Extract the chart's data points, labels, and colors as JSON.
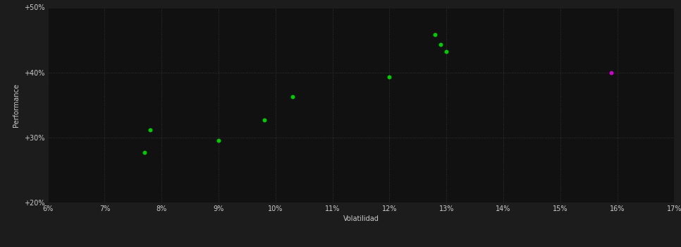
{
  "background_color": "#1c1c1c",
  "plot_bg_color": "#111111",
  "grid_color": "#3a3a3a",
  "xlabel": "Volatilidad",
  "ylabel": "Performance",
  "xlim": [
    0.06,
    0.17
  ],
  "ylim": [
    0.2,
    0.5
  ],
  "xticks": [
    0.06,
    0.07,
    0.08,
    0.09,
    0.1,
    0.11,
    0.12,
    0.13,
    0.14,
    0.15,
    0.16,
    0.17
  ],
  "yticks": [
    0.2,
    0.3,
    0.4,
    0.5
  ],
  "ytick_labels": [
    "+20%",
    "+30%",
    "+40%",
    "+50%"
  ],
  "green_points": [
    [
      0.078,
      0.312
    ],
    [
      0.077,
      0.277
    ],
    [
      0.09,
      0.295
    ],
    [
      0.098,
      0.327
    ],
    [
      0.103,
      0.363
    ],
    [
      0.12,
      0.393
    ],
    [
      0.128,
      0.458
    ],
    [
      0.129,
      0.443
    ],
    [
      0.13,
      0.432
    ]
  ],
  "magenta_points": [
    [
      0.159,
      0.4
    ]
  ],
  "green_color": "#00cc00",
  "magenta_color": "#cc00cc",
  "point_size": 18,
  "axis_label_fontsize": 7,
  "tick_fontsize": 7,
  "tick_color": "#cccccc"
}
